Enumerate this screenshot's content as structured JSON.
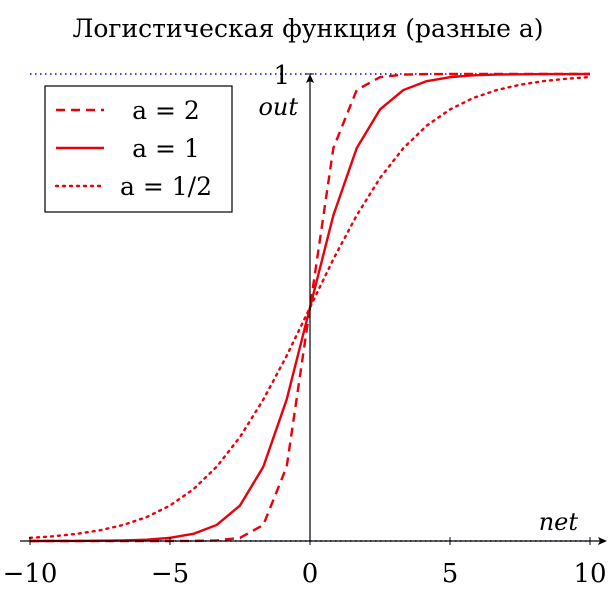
{
  "chart_data": {
    "type": "line",
    "title": "Логистическая функция (разные a)",
    "xlabel": "net",
    "ylabel": "out",
    "xlim": [
      -10,
      10
    ],
    "ylim": [
      0,
      1
    ],
    "xticks": [
      -10,
      -5,
      0,
      5,
      10
    ],
    "xtick_labels": [
      "−10",
      "−5",
      "0",
      "5",
      "10"
    ],
    "yticks": [
      1
    ],
    "ytick_labels": [
      "1"
    ],
    "grid": false,
    "legend_position": "top-left",
    "asymptotes": [
      0,
      1
    ],
    "x": [
      -10,
      -9.1667,
      -8.3333,
      -7.5,
      -6.6667,
      -5.8333,
      -5,
      -4.1667,
      -3.3333,
      -2.5,
      -1.6667,
      -0.8333,
      0,
      0.8333,
      1.6667,
      2.5,
      3.3333,
      4.1667,
      5,
      5.8333,
      6.6667,
      7.5,
      8.3333,
      9.1667,
      10
    ],
    "series": [
      {
        "name": "a = 2",
        "style": "dashed",
        "color": "#e8000b",
        "values": [
          0.0,
          0.0,
          0.0,
          0.0,
          0.0,
          0.0,
          0.0,
          0.0002,
          0.0013,
          0.0067,
          0.0344,
          0.1589,
          0.5,
          0.8411,
          0.9656,
          0.9933,
          0.9987,
          0.9998,
          1.0,
          1.0,
          1.0,
          1.0,
          1.0,
          1.0,
          1.0
        ]
      },
      {
        "name": "a = 1",
        "style": "solid",
        "color": "#e8000b",
        "values": [
          0.0,
          0.0001,
          0.0002,
          0.0006,
          0.0013,
          0.0029,
          0.0067,
          0.0153,
          0.0344,
          0.0759,
          0.1589,
          0.3029,
          0.5,
          0.6971,
          0.8411,
          0.9241,
          0.9656,
          0.9847,
          0.9933,
          0.9971,
          0.9987,
          0.9994,
          0.9998,
          0.9999,
          1.0
        ]
      },
      {
        "name": "a = 1/2",
        "style": "dotted",
        "color": "#e8000b",
        "values": [
          0.0067,
          0.0101,
          0.0153,
          0.023,
          0.0344,
          0.0512,
          0.0759,
          0.1107,
          0.1589,
          0.2227,
          0.3029,
          0.3965,
          0.5,
          0.6035,
          0.6971,
          0.7773,
          0.8411,
          0.8893,
          0.9241,
          0.9488,
          0.9656,
          0.977,
          0.9847,
          0.9899,
          0.9933
        ]
      }
    ]
  },
  "colors": {
    "curve": "#e8000b",
    "asymptote": "#0000ee",
    "axis": "#000000"
  }
}
